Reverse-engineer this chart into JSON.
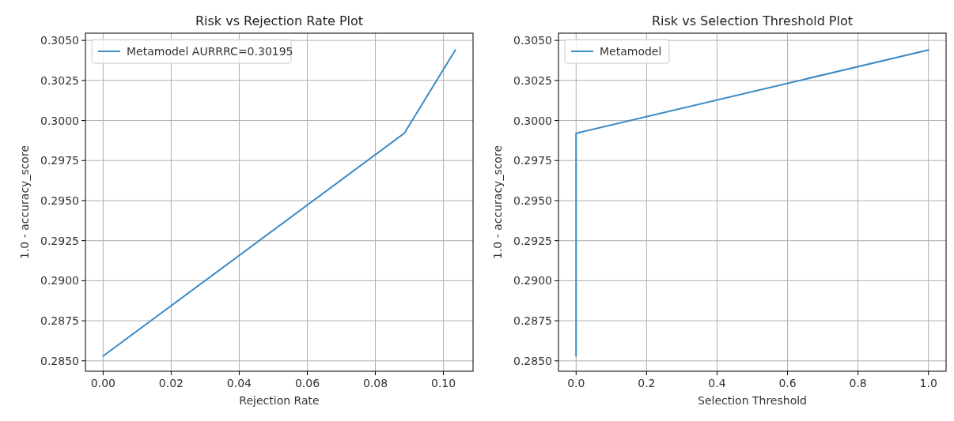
{
  "chart_data": [
    {
      "type": "line",
      "title": "Risk vs Rejection Rate Plot",
      "xlabel": "Rejection Rate",
      "ylabel": "1.0 - accuracy_score",
      "x": [
        0,
        0.0885,
        0.1035
      ],
      "series": [
        {
          "name": "Metamodel AURRRC=0.30195",
          "color": "#3a8ac6",
          "values": [
            0.2853,
            0.2992,
            0.3044
          ]
        }
      ],
      "xlim": [
        -0.0052,
        0.1087
      ],
      "xticks": [
        {
          "value": 0,
          "label": "0.00"
        },
        0.02,
        0.04,
        0.06,
        0.08,
        {
          "value": 0.1,
          "label": "0.10"
        }
      ],
      "ylim": [
        0.28435,
        0.30545
      ],
      "yticks": [
        {
          "value": 0.285,
          "label": "0.2850"
        },
        0.2875,
        {
          "value": 0.29,
          "label": "0.2900"
        },
        0.2925,
        {
          "value": 0.295,
          "label": "0.2950"
        },
        0.2975,
        {
          "value": 0.3,
          "label": "0.3000"
        },
        0.3025,
        {
          "value": 0.305,
          "label": "0.3050"
        }
      ],
      "grid": true,
      "legend": "top left",
      "line_style": "solid",
      "marker": "none"
    },
    {
      "type": "line",
      "title": "Risk vs Selection Threshold Plot",
      "xlabel": "Selection Threshold",
      "ylabel": "1.0 - accuracy_score",
      "x": [
        0,
        0,
        1
      ],
      "series": [
        {
          "name": "Metamodel",
          "color": "#3a8ac6",
          "values": [
            0.2853,
            0.2992,
            0.3044
          ]
        }
      ],
      "xlim": [
        -0.05,
        1.05
      ],
      "xticks": [
        {
          "value": 0,
          "label": "0.0"
        },
        0.2,
        0.4,
        0.6,
        0.8,
        {
          "value": 1,
          "label": "1.0"
        }
      ],
      "ylim": [
        0.28435,
        0.30545
      ],
      "yticks": [
        {
          "value": 0.285,
          "label": "0.2850"
        },
        0.2875,
        {
          "value": 0.29,
          "label": "0.2900"
        },
        0.2925,
        {
          "value": 0.295,
          "label": "0.2950"
        },
        0.2975,
        {
          "value": 0.3,
          "label": "0.3000"
        },
        0.3025,
        {
          "value": 0.305,
          "label": "0.3050"
        }
      ],
      "grid": true,
      "legend": "top left",
      "line_style": "solid",
      "marker": "none"
    }
  ]
}
